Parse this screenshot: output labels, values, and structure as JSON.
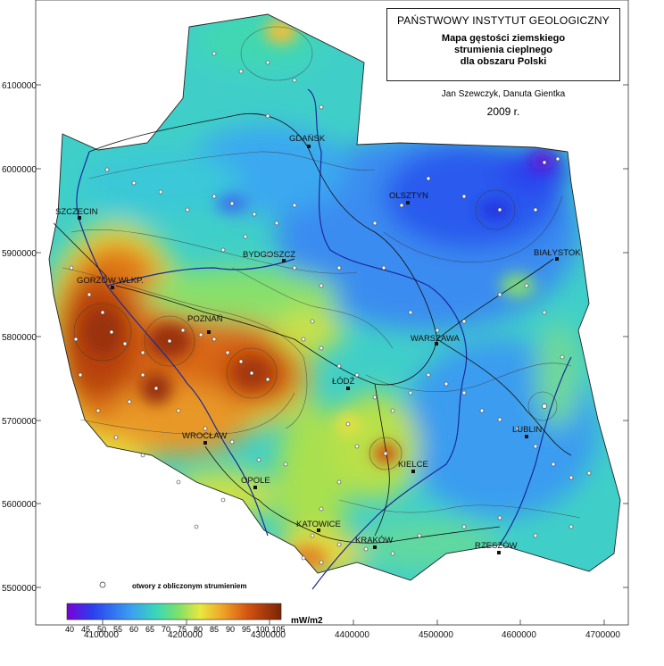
{
  "title": {
    "institute": "PAŃSTWOWY INSTYTUT GEOLOGICZNY",
    "line1": "Mapa gęstości ziemskiego",
    "line2": "strumienia cieplnego",
    "line3": "dla obszaru Polski"
  },
  "authors": "Jan Szewczyk, Danuta Gientka",
  "year": "2009 r.",
  "legend": {
    "point_note": "otwory z obliczonym strumieniem",
    "unit": "mW/m2",
    "ticks": [
      "40",
      "45",
      "50",
      "55",
      "60",
      "65",
      "70",
      "75",
      "80",
      "85",
      "90",
      "95",
      "100",
      "105"
    ]
  },
  "axes": {
    "y_ticks": [
      "6100000",
      "6000000",
      "5900000",
      "5800000",
      "5700000",
      "5600000",
      "5500000"
    ],
    "x_ticks": [
      "4100000",
      "4200000",
      "4300000",
      "4400000",
      "4500000",
      "4600000",
      "4700000"
    ]
  },
  "cities": [
    {
      "name": "GDAŃSK"
    },
    {
      "name": "OLSZTYN"
    },
    {
      "name": "SZCZECIN"
    },
    {
      "name": "BYDGOSZCZ"
    },
    {
      "name": "BIAŁYSTOK"
    },
    {
      "name": "GORZÓW WLKP."
    },
    {
      "name": "POZNAŃ"
    },
    {
      "name": "WARSZAWA"
    },
    {
      "name": "ŁÓDŹ"
    },
    {
      "name": "LUBLIN"
    },
    {
      "name": "WROCŁAW"
    },
    {
      "name": "KIELCE"
    },
    {
      "name": "OPOLE"
    },
    {
      "name": "KATOWICE"
    },
    {
      "name": "KRAKÓW"
    },
    {
      "name": "RZESZÓW"
    }
  ],
  "colors": {
    "c40": "#7a00d8",
    "c50": "#2a55ee",
    "c60": "#3aa0f0",
    "c70": "#3ad8b8",
    "c75": "#7ee06a",
    "c80": "#e8e840",
    "c85": "#f0a828",
    "c95": "#d25010",
    "c105": "#8a2a05"
  }
}
